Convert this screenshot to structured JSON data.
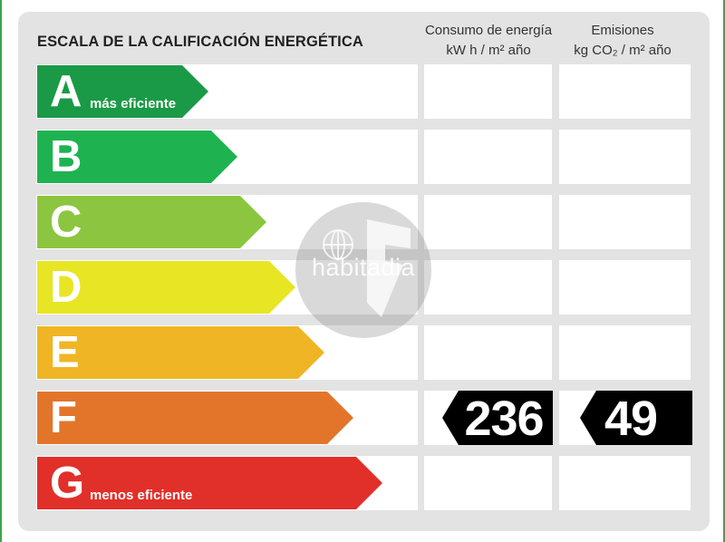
{
  "title": "ESCALA DE LA CALIFICACIÓN ENERGÉTICA",
  "columns": {
    "consumo": {
      "line1": "Consumo de energía",
      "line2": "kW h  / m² año"
    },
    "emisiones": {
      "line1": "Emisiones",
      "line2": "kg CO₂  / m² año"
    }
  },
  "ratings": [
    {
      "letter": "A",
      "sublabel": "más eficiente",
      "color": "#1a9a46"
    },
    {
      "letter": "B",
      "sublabel": "",
      "color": "#1eb350"
    },
    {
      "letter": "C",
      "sublabel": "",
      "color": "#8cc53f"
    },
    {
      "letter": "D",
      "sublabel": "",
      "color": "#e8e524"
    },
    {
      "letter": "E",
      "sublabel": "",
      "color": "#f0b524"
    },
    {
      "letter": "F",
      "sublabel": "",
      "color": "#e3752b"
    },
    {
      "letter": "G",
      "sublabel": "menos eficiente",
      "color": "#e12f2a"
    }
  ],
  "current": {
    "rating": "F",
    "consumo_value": "236",
    "emisiones_value": "49"
  },
  "watermark": {
    "text": "habitadia",
    "icon": "habitadia-logo-icon"
  }
}
